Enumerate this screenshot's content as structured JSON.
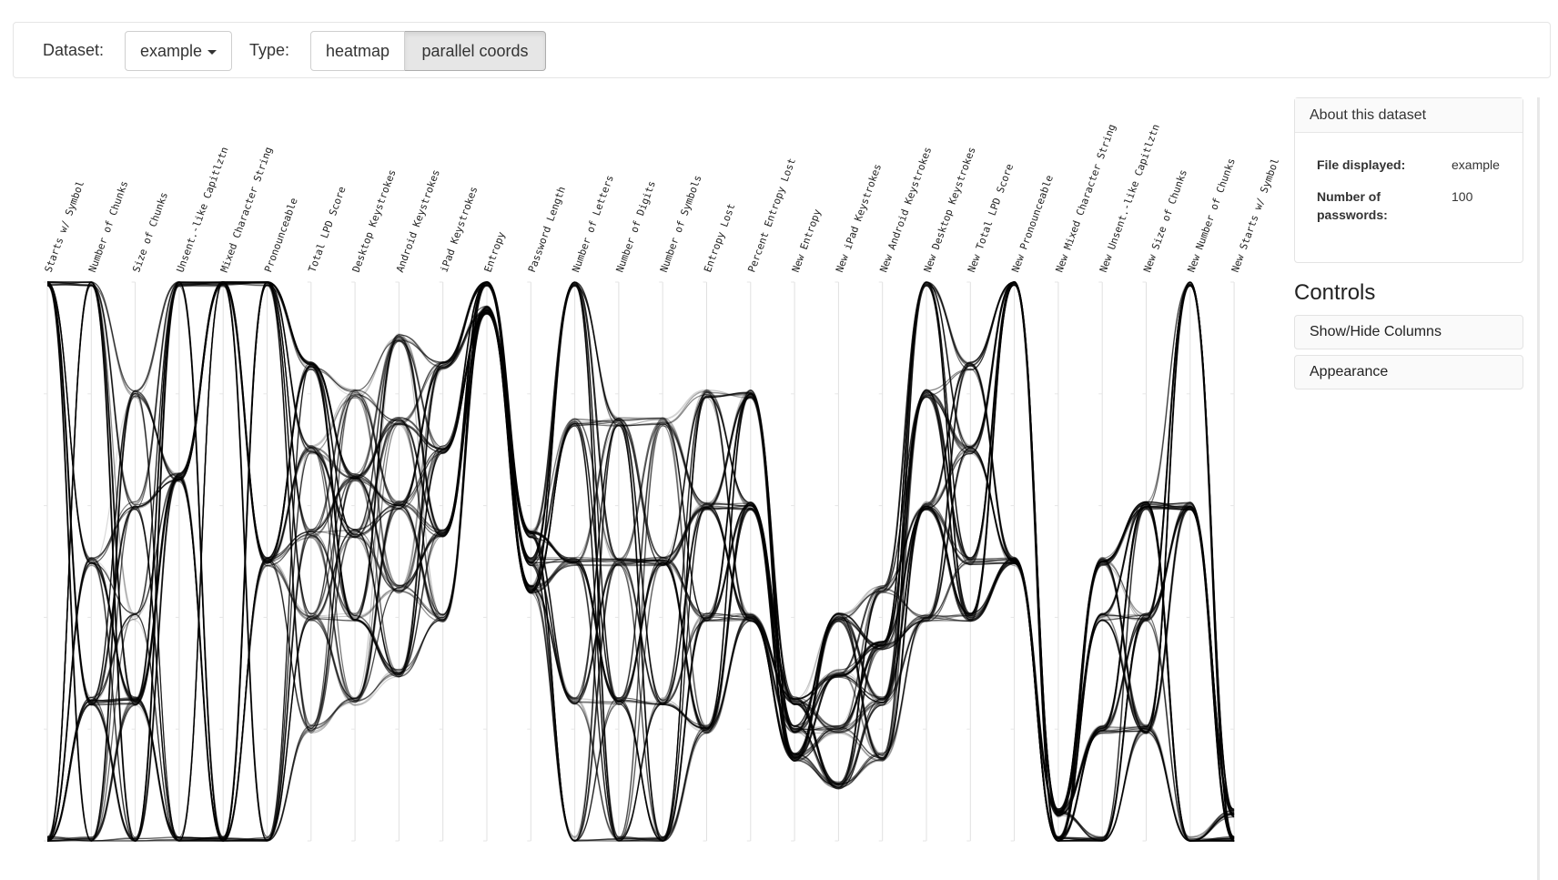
{
  "toolbar": {
    "dataset_label": "Dataset:",
    "dataset_value": "example",
    "type_label": "Type:",
    "type_options": [
      "heatmap",
      "parallel coords"
    ],
    "active_type": "parallel coords"
  },
  "sidebar": {
    "about_title": "About this dataset",
    "file_label": "File displayed:",
    "file_value": "example",
    "count_label_line1": "Number of",
    "count_label_line2": "passwords:",
    "count_value": "100",
    "controls_title": "Controls",
    "control_items": [
      "Show/Hide Columns",
      "Appearance"
    ]
  },
  "chart_data": {
    "type": "parallel-coordinates",
    "axes": [
      "Starts w/ Symbol",
      "Number of Chunks",
      "Size of Chunks",
      "Unsent.-like Capitlztn",
      "Mixed Character String",
      "Pronounceable",
      "Total LPD Score",
      "Desktop Keystrokes",
      "Android Keystrokes",
      "iPad Keystrokes",
      "Entropy",
      "Password Length",
      "Number of Letters",
      "Number of Digits",
      "Number of Symbols",
      "Entropy Lost",
      "Percent Entropy Lost",
      "New Entropy",
      "New iPad Keystrokes",
      "New Android Keystrokes",
      "New Desktop Keystrokes",
      "New Total LPD Score",
      "New Pronounceable",
      "New Mixed Character String",
      "New Unsent.-like Capitlztn",
      "New Size of Chunks",
      "New Number of Chunks",
      "New Starts w/ Symbol"
    ],
    "line_count": 100,
    "line_color": "#000000"
  }
}
